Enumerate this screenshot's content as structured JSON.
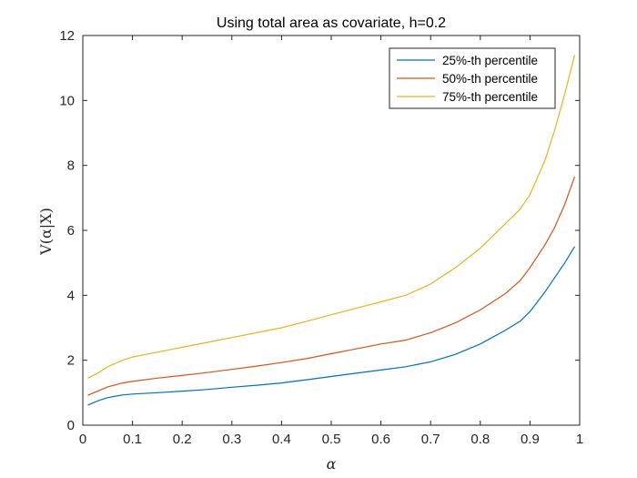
{
  "chart_data": {
    "type": "line",
    "title": "Using total area as covariate, h=0.2",
    "xlabel": "α",
    "ylabel": "V(α|X)",
    "xlim": [
      0,
      1
    ],
    "ylim": [
      0,
      12
    ],
    "xticks": [
      0,
      0.1,
      0.2,
      0.3,
      0.4,
      0.5,
      0.6,
      0.7,
      0.8,
      0.9,
      1
    ],
    "yticks": [
      0,
      2,
      4,
      6,
      8,
      10,
      12
    ],
    "xtick_labels": [
      "0",
      "0.1",
      "0.2",
      "0.3",
      "0.4",
      "0.5",
      "0.6",
      "0.7",
      "0.8",
      "0.9",
      "1"
    ],
    "ytick_labels": [
      "0",
      "2",
      "4",
      "6",
      "8",
      "10",
      "12"
    ],
    "grid": false,
    "legend_position": "top-right",
    "series": [
      {
        "name": "25%-th percentile",
        "color": "#0072BD",
        "x": [
          0.01,
          0.03,
          0.05,
          0.08,
          0.1,
          0.15,
          0.2,
          0.25,
          0.3,
          0.35,
          0.4,
          0.45,
          0.5,
          0.55,
          0.6,
          0.65,
          0.7,
          0.75,
          0.8,
          0.85,
          0.88,
          0.9,
          0.93,
          0.95,
          0.97,
          0.99
        ],
        "y": [
          0.62,
          0.75,
          0.85,
          0.93,
          0.96,
          1.0,
          1.05,
          1.1,
          1.17,
          1.23,
          1.3,
          1.4,
          1.5,
          1.6,
          1.7,
          1.8,
          1.95,
          2.18,
          2.5,
          2.92,
          3.2,
          3.5,
          4.1,
          4.55,
          5.0,
          5.5
        ]
      },
      {
        "name": "50%-th percentile",
        "color": "#D95319",
        "x": [
          0.01,
          0.03,
          0.05,
          0.08,
          0.1,
          0.15,
          0.2,
          0.25,
          0.3,
          0.35,
          0.4,
          0.45,
          0.5,
          0.55,
          0.6,
          0.65,
          0.7,
          0.75,
          0.8,
          0.85,
          0.88,
          0.9,
          0.93,
          0.95,
          0.97,
          0.99
        ],
        "y": [
          0.92,
          1.05,
          1.18,
          1.3,
          1.35,
          1.45,
          1.53,
          1.62,
          1.72,
          1.82,
          1.93,
          2.05,
          2.2,
          2.35,
          2.5,
          2.62,
          2.85,
          3.15,
          3.55,
          4.05,
          4.45,
          4.85,
          5.55,
          6.1,
          6.8,
          7.65
        ]
      },
      {
        "name": "75%-th percentile",
        "color": "#EDB120",
        "x": [
          0.01,
          0.03,
          0.05,
          0.08,
          0.1,
          0.15,
          0.2,
          0.25,
          0.3,
          0.35,
          0.4,
          0.45,
          0.5,
          0.55,
          0.6,
          0.65,
          0.7,
          0.75,
          0.8,
          0.85,
          0.88,
          0.9,
          0.93,
          0.95,
          0.97,
          0.99
        ],
        "y": [
          1.45,
          1.6,
          1.8,
          2.0,
          2.1,
          2.25,
          2.4,
          2.55,
          2.7,
          2.85,
          3.0,
          3.2,
          3.4,
          3.6,
          3.8,
          4.0,
          4.35,
          4.85,
          5.45,
          6.2,
          6.65,
          7.1,
          8.15,
          9.1,
          10.2,
          11.4
        ]
      }
    ]
  }
}
